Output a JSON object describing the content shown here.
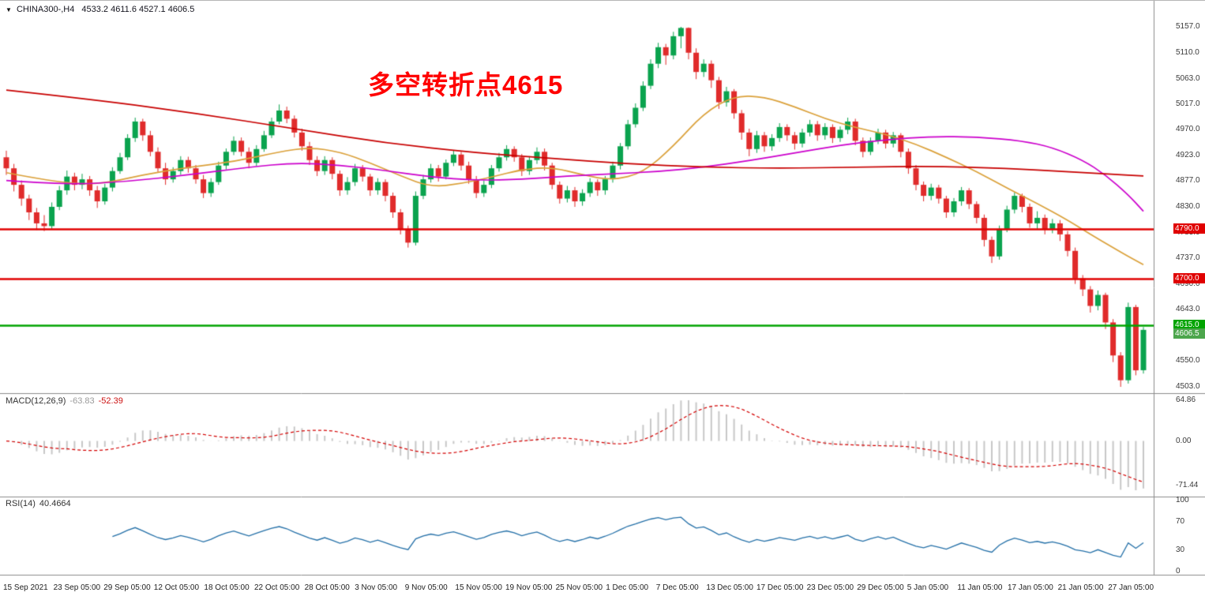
{
  "window": {
    "dropdown_icon": "▼",
    "symbol": "CHINA300-,H4",
    "ohlc": "4533.2 4611.6 4527.1 4606.5"
  },
  "annotation": {
    "text": "多空转折点4615",
    "color": "#FF0000"
  },
  "colors": {
    "background": "#FFFFFF",
    "candle_up": "#0AA34E",
    "candle_down": "#E02B2B",
    "ma_slow_red": "#C80000",
    "ma_mid_magenta": "#CC00CC",
    "ma_fast_orange": "#DBA13A",
    "macd_histogram": "#C8C8C8",
    "macd_signal": "#D40000",
    "rsi_line": "#2470A8",
    "separator": "#8C8C8C"
  },
  "price_axis": {
    "labels": [
      "5157.0",
      "5110.0",
      "5063.0",
      "5017.0",
      "4970.0",
      "4923.0",
      "4877.0",
      "4830.0",
      "4783.0",
      "4737.0",
      "4690.0",
      "4643.0",
      "4597.0",
      "4550.0",
      "4503.0"
    ]
  },
  "time_axis": {
    "labels": [
      "15 Sep 2021",
      "23 Sep 05:00",
      "29 Sep 05:00",
      "12 Oct 05:00",
      "18 Oct 05:00",
      "22 Oct 05:00",
      "28 Oct 05:00",
      "3 Nov 05:00",
      "9 Nov 05:00",
      "15 Nov 05:00",
      "19 Nov 05:00",
      "25 Nov 05:00",
      "1 Dec 05:00",
      "7 Dec 05:00",
      "13 Dec 05:00",
      "17 Dec 05:00",
      "23 Dec 05:00",
      "29 Dec 05:00",
      "5 Jan 05:00",
      "11 Jan 05:00",
      "17 Jan 05:00",
      "21 Jan 05:00",
      "27 Jan 05:00"
    ]
  },
  "macd": {
    "label": "MACD(12,26,9)",
    "value_main": "-63.83",
    "value_signal": "-52.39",
    "axis_labels": [
      "64.86",
      "0.00",
      "-71.44"
    ]
  },
  "rsi": {
    "label": "RSI(14)",
    "value": "40.4664",
    "axis_labels": [
      "100",
      "70",
      "30",
      "0"
    ]
  },
  "chart_data": {
    "type": "candlestick",
    "symbol": "CHINA300-",
    "timeframe": "H4",
    "title_annotation": "多空转折点4615",
    "ylim": [
      4503,
      5157
    ],
    "levels": [
      {
        "label": "4790.0",
        "price": 4790.0,
        "color": "#E00000",
        "kind": "hline"
      },
      {
        "label": "4700.0",
        "price": 4700.0,
        "color": "#E00000",
        "kind": "hline"
      },
      {
        "label": "4615.0",
        "price": 4615.0,
        "color": "#00A400",
        "kind": "hline"
      },
      {
        "label": "4606.5",
        "price": 4606.5,
        "color": "#4CA64C",
        "kind": "bid"
      }
    ],
    "candles": [
      [
        4920,
        4932,
        4888,
        4900
      ],
      [
        4900,
        4908,
        4858,
        4870
      ],
      [
        4870,
        4878,
        4832,
        4845
      ],
      [
        4845,
        4852,
        4806,
        4820
      ],
      [
        4820,
        4828,
        4788,
        4800
      ],
      [
        4800,
        4815,
        4786,
        4795
      ],
      [
        4795,
        4838,
        4790,
        4830
      ],
      [
        4830,
        4868,
        4824,
        4860
      ],
      [
        4860,
        4896,
        4852,
        4885
      ],
      [
        4885,
        4892,
        4860,
        4870
      ],
      [
        4870,
        4890,
        4862,
        4880
      ],
      [
        4880,
        4886,
        4850,
        4860
      ],
      [
        4860,
        4868,
        4828,
        4840
      ],
      [
        4840,
        4872,
        4834,
        4865
      ],
      [
        4865,
        4902,
        4858,
        4895
      ],
      [
        4895,
        4928,
        4890,
        4920
      ],
      [
        4920,
        4962,
        4915,
        4955
      ],
      [
        4955,
        4992,
        4948,
        4985
      ],
      [
        4985,
        4990,
        4950,
        4960
      ],
      [
        4960,
        4968,
        4922,
        4930
      ],
      [
        4930,
        4938,
        4892,
        4900
      ],
      [
        4900,
        4910,
        4870,
        4880
      ],
      [
        4880,
        4902,
        4874,
        4895
      ],
      [
        4895,
        4922,
        4888,
        4915
      ],
      [
        4915,
        4921,
        4892,
        4900
      ],
      [
        4900,
        4906,
        4872,
        4880
      ],
      [
        4880,
        4888,
        4846,
        4855
      ],
      [
        4855,
        4882,
        4848,
        4875
      ],
      [
        4875,
        4912,
        4870,
        4905
      ],
      [
        4905,
        4936,
        4898,
        4930
      ],
      [
        4930,
        4958,
        4924,
        4950
      ],
      [
        4950,
        4956,
        4922,
        4930
      ],
      [
        4930,
        4938,
        4900,
        4910
      ],
      [
        4910,
        4942,
        4904,
        4935
      ],
      [
        4935,
        4968,
        4930,
        4960
      ],
      [
        4960,
        4992,
        4955,
        4985
      ],
      [
        4985,
        5016,
        4980,
        5005
      ],
      [
        5005,
        5012,
        4982,
        4990
      ],
      [
        4990,
        4996,
        4956,
        4965
      ],
      [
        4965,
        4972,
        4932,
        4940
      ],
      [
        4940,
        4948,
        4906,
        4915
      ],
      [
        4915,
        4922,
        4886,
        4895
      ],
      [
        4895,
        4922,
        4888,
        4915
      ],
      [
        4915,
        4920,
        4880,
        4890
      ],
      [
        4890,
        4896,
        4850,
        4860
      ],
      [
        4860,
        4884,
        4852,
        4875
      ],
      [
        4875,
        4908,
        4868,
        4900
      ],
      [
        4900,
        4906,
        4876,
        4885
      ],
      [
        4885,
        4890,
        4850,
        4860
      ],
      [
        4860,
        4882,
        4852,
        4875
      ],
      [
        4875,
        4880,
        4840,
        4850
      ],
      [
        4850,
        4856,
        4810,
        4820
      ],
      [
        4820,
        4826,
        4780,
        4790
      ],
      [
        4790,
        4796,
        4756,
        4765
      ],
      [
        4765,
        4858,
        4760,
        4850
      ],
      [
        4850,
        4888,
        4844,
        4880
      ],
      [
        4880,
        4908,
        4874,
        4900
      ],
      [
        4900,
        4906,
        4876,
        4885
      ],
      [
        4885,
        4916,
        4880,
        4910
      ],
      [
        4910,
        4932,
        4904,
        4925
      ],
      [
        4925,
        4930,
        4896,
        4905
      ],
      [
        4905,
        4912,
        4872,
        4880
      ],
      [
        4880,
        4886,
        4846,
        4855
      ],
      [
        4855,
        4878,
        4848,
        4870
      ],
      [
        4870,
        4906,
        4864,
        4900
      ],
      [
        4900,
        4928,
        4894,
        4920
      ],
      [
        4920,
        4942,
        4914,
        4935
      ],
      [
        4935,
        4940,
        4912,
        4920
      ],
      [
        4920,
        4926,
        4886,
        4895
      ],
      [
        4895,
        4922,
        4888,
        4915
      ],
      [
        4915,
        4938,
        4908,
        4930
      ],
      [
        4930,
        4936,
        4896,
        4905
      ],
      [
        4905,
        4910,
        4862,
        4870
      ],
      [
        4870,
        4876,
        4836,
        4845
      ],
      [
        4845,
        4868,
        4838,
        4860
      ],
      [
        4860,
        4866,
        4830,
        4840
      ],
      [
        4840,
        4862,
        4832,
        4855
      ],
      [
        4855,
        4882,
        4848,
        4875
      ],
      [
        4875,
        4880,
        4850,
        4860
      ],
      [
        4860,
        4886,
        4852,
        4880
      ],
      [
        4880,
        4912,
        4874,
        4905
      ],
      [
        4905,
        4946,
        4898,
        4940
      ],
      [
        4940,
        4988,
        4934,
        4980
      ],
      [
        4980,
        5018,
        4974,
        5010
      ],
      [
        5010,
        5058,
        5004,
        5050
      ],
      [
        5050,
        5098,
        5044,
        5090
      ],
      [
        5090,
        5128,
        5082,
        5120
      ],
      [
        5120,
        5126,
        5088,
        5105
      ],
      [
        5105,
        5148,
        5098,
        5140
      ],
      [
        5140,
        5157,
        5118,
        5155
      ],
      [
        5155,
        5156,
        5098,
        5110
      ],
      [
        5110,
        5118,
        5062,
        5075
      ],
      [
        5075,
        5098,
        5066,
        5090
      ],
      [
        5090,
        5096,
        5046,
        5060
      ],
      [
        5060,
        5066,
        5008,
        5020
      ],
      [
        5020,
        5048,
        5012,
        5040
      ],
      [
        5040,
        5044,
        4990,
        5000
      ],
      [
        5000,
        5006,
        4952,
        4965
      ],
      [
        4965,
        4972,
        4922,
        4935
      ],
      [
        4935,
        4968,
        4928,
        4960
      ],
      [
        4960,
        4966,
        4930,
        4940
      ],
      [
        4940,
        4962,
        4932,
        4955
      ],
      [
        4955,
        4982,
        4948,
        4975
      ],
      [
        4975,
        4980,
        4950,
        4960
      ],
      [
        4960,
        4966,
        4934,
        4945
      ],
      [
        4945,
        4972,
        4938,
        4965
      ],
      [
        4965,
        4988,
        4958,
        4980
      ],
      [
        4980,
        4986,
        4950,
        4960
      ],
      [
        4960,
        4982,
        4952,
        4975
      ],
      [
        4975,
        4980,
        4946,
        4955
      ],
      [
        4955,
        4976,
        4948,
        4970
      ],
      [
        4970,
        4992,
        4962,
        4985
      ],
      [
        4985,
        4990,
        4942,
        4950
      ],
      [
        4950,
        4956,
        4920,
        4930
      ],
      [
        4930,
        4956,
        4924,
        4950
      ],
      [
        4950,
        4972,
        4944,
        4965
      ],
      [
        4965,
        4970,
        4936,
        4945
      ],
      [
        4945,
        4966,
        4938,
        4960
      ],
      [
        4960,
        4964,
        4920,
        4930
      ],
      [
        4930,
        4936,
        4890,
        4900
      ],
      [
        4900,
        4906,
        4860,
        4870
      ],
      [
        4870,
        4876,
        4840,
        4850
      ],
      [
        4850,
        4872,
        4842,
        4865
      ],
      [
        4865,
        4870,
        4836,
        4845
      ],
      [
        4845,
        4850,
        4810,
        4820
      ],
      [
        4820,
        4846,
        4812,
        4840
      ],
      [
        4840,
        4866,
        4832,
        4860
      ],
      [
        4860,
        4864,
        4826,
        4835
      ],
      [
        4835,
        4840,
        4800,
        4810
      ],
      [
        4810,
        4816,
        4758,
        4770
      ],
      [
        4770,
        4776,
        4728,
        4740
      ],
      [
        4740,
        4796,
        4734,
        4790
      ],
      [
        4790,
        4832,
        4784,
        4825
      ],
      [
        4825,
        4856,
        4818,
        4850
      ],
      [
        4850,
        4854,
        4820,
        4830
      ],
      [
        4830,
        4836,
        4792,
        4800
      ],
      [
        4800,
        4822,
        4790,
        4810
      ],
      [
        4810,
        4816,
        4780,
        4790
      ],
      [
        4790,
        4808,
        4782,
        4800
      ],
      [
        4800,
        4806,
        4768,
        4780
      ],
      [
        4780,
        4786,
        4740,
        4750
      ],
      [
        4750,
        4756,
        4690,
        4700
      ],
      [
        4700,
        4706,
        4668,
        4680
      ],
      [
        4680,
        4686,
        4638,
        4650
      ],
      [
        4650,
        4678,
        4642,
        4670
      ],
      [
        4670,
        4674,
        4608,
        4620
      ],
      [
        4620,
        4626,
        4548,
        4560
      ],
      [
        4560,
        4566,
        4503,
        4515
      ],
      [
        4515,
        4656,
        4509,
        4648
      ],
      [
        4648,
        4652,
        4524,
        4533
      ],
      [
        4533.2,
        4611.6,
        4527.1,
        4606.5
      ]
    ],
    "moving_averages": [
      {
        "name": "slow-red",
        "color": "#C80000",
        "points": [
          [
            0,
            5042
          ],
          [
            12,
            5024
          ],
          [
            25,
            5000
          ],
          [
            38,
            4972
          ],
          [
            50,
            4946
          ],
          [
            62,
            4928
          ],
          [
            72,
            4918
          ],
          [
            82,
            4908
          ],
          [
            92,
            4902
          ],
          [
            102,
            4900
          ],
          [
            112,
            4902
          ],
          [
            122,
            4904
          ],
          [
            132,
            4900
          ],
          [
            140,
            4894
          ],
          [
            146,
            4889
          ],
          [
            150,
            4886
          ]
        ]
      },
      {
        "name": "mid-magenta",
        "color": "#CC00CC",
        "points": [
          [
            0,
            4878
          ],
          [
            8,
            4870
          ],
          [
            16,
            4876
          ],
          [
            24,
            4888
          ],
          [
            32,
            4902
          ],
          [
            38,
            4910
          ],
          [
            44,
            4906
          ],
          [
            50,
            4896
          ],
          [
            56,
            4884
          ],
          [
            62,
            4878
          ],
          [
            68,
            4880
          ],
          [
            74,
            4886
          ],
          [
            80,
            4890
          ],
          [
            86,
            4894
          ],
          [
            92,
            4902
          ],
          [
            98,
            4914
          ],
          [
            104,
            4928
          ],
          [
            110,
            4942
          ],
          [
            116,
            4952
          ],
          [
            122,
            4958
          ],
          [
            128,
            4957
          ],
          [
            134,
            4950
          ],
          [
            138,
            4938
          ],
          [
            142,
            4915
          ],
          [
            145,
            4888
          ],
          [
            148,
            4852
          ],
          [
            150,
            4822
          ]
        ]
      },
      {
        "name": "fast-orange",
        "color": "#DBA13A",
        "points": [
          [
            0,
            4892
          ],
          [
            6,
            4876
          ],
          [
            12,
            4870
          ],
          [
            18,
            4888
          ],
          [
            24,
            4902
          ],
          [
            30,
            4912
          ],
          [
            36,
            4930
          ],
          [
            40,
            4938
          ],
          [
            44,
            4930
          ],
          [
            48,
            4910
          ],
          [
            52,
            4886
          ],
          [
            56,
            4866
          ],
          [
            60,
            4872
          ],
          [
            64,
            4884
          ],
          [
            68,
            4898
          ],
          [
            72,
            4902
          ],
          [
            76,
            4888
          ],
          [
            80,
            4878
          ],
          [
            84,
            4892
          ],
          [
            88,
            4940
          ],
          [
            92,
            5000
          ],
          [
            96,
            5032
          ],
          [
            100,
            5030
          ],
          [
            104,
            5012
          ],
          [
            108,
            4990
          ],
          [
            112,
            4974
          ],
          [
            116,
            4962
          ],
          [
            120,
            4944
          ],
          [
            124,
            4920
          ],
          [
            128,
            4894
          ],
          [
            132,
            4864
          ],
          [
            136,
            4836
          ],
          [
            140,
            4806
          ],
          [
            143,
            4780
          ],
          [
            146,
            4756
          ],
          [
            148,
            4740
          ],
          [
            150,
            4725
          ]
        ]
      }
    ],
    "indicators": [
      {
        "name": "MACD",
        "params": [
          12,
          26,
          9
        ],
        "current_main": -63.83,
        "current_signal": -52.39,
        "axis_range": [
          64.86,
          -71.44
        ]
      },
      {
        "name": "RSI",
        "params": [
          14
        ],
        "current": 40.4664,
        "axis_range": [
          0,
          100
        ]
      }
    ]
  }
}
